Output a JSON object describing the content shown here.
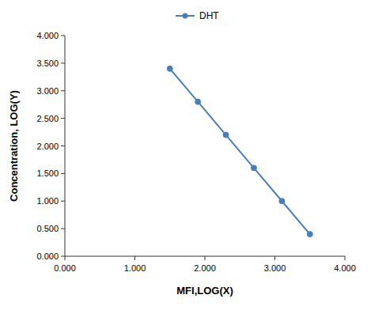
{
  "chart_data": {
    "type": "line",
    "x_label": "MFI,LOG(X)",
    "y_label": "Concentration,  LOG(Y)",
    "x": [
      1.5,
      1.9,
      2.3,
      2.7,
      3.1,
      3.5
    ],
    "series": [
      {
        "name": "DHT",
        "color": "#4a7ebb",
        "marker": "circle",
        "values": [
          3.4,
          2.8,
          2.2,
          1.6,
          1.0,
          0.4
        ]
      }
    ],
    "xlim": [
      0,
      4
    ],
    "xticks": [
      {
        "value": 0,
        "label": "0.000"
      },
      {
        "value": 1,
        "label": "1.000"
      },
      {
        "value": 2,
        "label": "2.000"
      },
      {
        "value": 3,
        "label": "3.000"
      },
      {
        "value": 4,
        "label": "4.000"
      }
    ],
    "ylim": [
      0,
      4
    ],
    "yticks": [
      {
        "value": 0,
        "label": "0.000"
      },
      {
        "value": 0.5,
        "label": "0.500"
      },
      {
        "value": 1,
        "label": "1.000"
      },
      {
        "value": 1.5,
        "label": "1.500"
      },
      {
        "value": 2,
        "label": "2.000"
      },
      {
        "value": 2.5,
        "label": "2.500"
      },
      {
        "value": 3,
        "label": "3.000"
      },
      {
        "value": 3.5,
        "label": "3.500"
      },
      {
        "value": 4,
        "label": "4.000"
      }
    ],
    "grid": false,
    "legend": "top"
  }
}
